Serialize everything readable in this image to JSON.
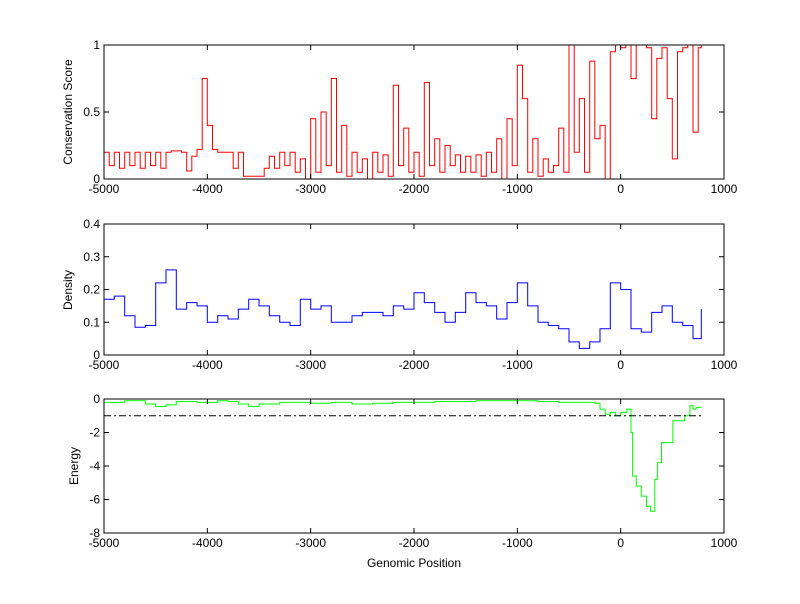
{
  "chart_data": [
    {
      "type": "line",
      "ylabel": "Conservation Score",
      "xlabel": "",
      "xlim": [
        -5000,
        1000
      ],
      "ylim": [
        0,
        1
      ],
      "xticks": [
        -5000,
        -4000,
        -3000,
        -2000,
        -1000,
        0,
        1000
      ],
      "yticks": [
        0,
        0.5,
        1
      ],
      "grid": false,
      "color": "#ff0000",
      "series": [
        {
          "x": [
            -5000,
            -4950,
            -4900,
            -4850,
            -4800,
            -4750,
            -4700,
            -4650,
            -4600,
            -4550,
            -4500,
            -4450,
            -4400,
            -4350,
            -4300,
            -4250,
            -4200,
            -4150,
            -4100,
            -4050,
            -4000,
            -3950,
            -3900,
            -3850,
            -3800,
            -3750,
            -3700,
            -3650,
            -3600,
            -3550,
            -3500,
            -3450,
            -3400,
            -3350,
            -3300,
            -3250,
            -3200,
            -3150,
            -3100,
            -3050,
            -3000,
            -2950,
            -2900,
            -2850,
            -2800,
            -2750,
            -2700,
            -2650,
            -2600,
            -2550,
            -2500,
            -2450,
            -2400,
            -2350,
            -2300,
            -2250,
            -2200,
            -2150,
            -2100,
            -2050,
            -2000,
            -1950,
            -1900,
            -1850,
            -1800,
            -1750,
            -1700,
            -1650,
            -1600,
            -1550,
            -1500,
            -1450,
            -1400,
            -1350,
            -1300,
            -1250,
            -1200,
            -1150,
            -1100,
            -1050,
            -1000,
            -950,
            -900,
            -850,
            -800,
            -750,
            -700,
            -650,
            -600,
            -550,
            -500,
            -450,
            -400,
            -350,
            -300,
            -250,
            -200,
            -150,
            -100,
            -50,
            0,
            50,
            100,
            150,
            200,
            250,
            300,
            350,
            400,
            450,
            500,
            550,
            600,
            650,
            700,
            750,
            780
          ],
          "y": [
            0.2,
            0.1,
            0.2,
            0.08,
            0.2,
            0.1,
            0.2,
            0.08,
            0.2,
            0.1,
            0.2,
            0.08,
            0.2,
            0.21,
            0.21,
            0.2,
            0.06,
            0.17,
            0.22,
            0.75,
            0.4,
            0.22,
            0.2,
            0.2,
            0.2,
            0.08,
            0.2,
            0.02,
            0.02,
            0.02,
            0.02,
            0.08,
            0.17,
            0.08,
            0.2,
            0.1,
            0.2,
            0.05,
            0.15,
            0.0,
            0.45,
            0.05,
            0.5,
            0.1,
            0.75,
            0.05,
            0.4,
            0.02,
            0.2,
            0.05,
            0.15,
            0.0,
            0.2,
            0.05,
            0.18,
            0.02,
            0.7,
            0.1,
            0.38,
            0.05,
            0.2,
            0.02,
            0.72,
            0.1,
            0.3,
            0.05,
            0.25,
            0.1,
            0.18,
            0.05,
            0.17,
            0.05,
            0.18,
            0.02,
            0.2,
            0.05,
            0.3,
            0.0,
            0.45,
            0.1,
            0.85,
            0.6,
            0.05,
            0.3,
            0.02,
            0.15,
            0.05,
            0.1,
            0.38,
            0.05,
            1.0,
            0.2,
            0.6,
            0.05,
            0.88,
            0.3,
            0.4,
            0.0,
            0.95,
            1.0,
            0.98,
            1.0,
            0.75,
            1.0,
            1.0,
            0.98,
            0.45,
            0.9,
            0.98,
            0.6,
            0.15,
            0.95,
            0.98,
            1.0,
            0.35,
            0.98,
            1.0
          ]
        }
      ]
    },
    {
      "type": "line",
      "ylabel": "Density",
      "xlabel": "",
      "xlim": [
        -5000,
        1000
      ],
      "ylim": [
        0,
        0.4
      ],
      "xticks": [
        -5000,
        -4000,
        -3000,
        -2000,
        -1000,
        0,
        1000
      ],
      "yticks": [
        0,
        0.1,
        0.2,
        0.3,
        0.4
      ],
      "grid": false,
      "color": "#0000ff",
      "series": [
        {
          "x": [
            -5000,
            -4900,
            -4800,
            -4700,
            -4600,
            -4500,
            -4400,
            -4300,
            -4200,
            -4100,
            -4000,
            -3900,
            -3800,
            -3700,
            -3600,
            -3500,
            -3400,
            -3300,
            -3200,
            -3100,
            -3000,
            -2900,
            -2800,
            -2700,
            -2600,
            -2500,
            -2400,
            -2300,
            -2200,
            -2100,
            -2000,
            -1900,
            -1800,
            -1700,
            -1600,
            -1500,
            -1400,
            -1300,
            -1200,
            -1100,
            -1000,
            -900,
            -800,
            -700,
            -600,
            -500,
            -400,
            -300,
            -200,
            -100,
            0,
            100,
            200,
            300,
            400,
            500,
            600,
            700,
            780
          ],
          "y": [
            0.17,
            0.18,
            0.12,
            0.085,
            0.09,
            0.22,
            0.26,
            0.14,
            0.16,
            0.15,
            0.1,
            0.12,
            0.11,
            0.14,
            0.17,
            0.15,
            0.12,
            0.1,
            0.09,
            0.17,
            0.14,
            0.15,
            0.1,
            0.1,
            0.12,
            0.13,
            0.13,
            0.12,
            0.15,
            0.14,
            0.19,
            0.16,
            0.13,
            0.1,
            0.13,
            0.19,
            0.16,
            0.15,
            0.11,
            0.16,
            0.22,
            0.15,
            0.1,
            0.09,
            0.08,
            0.04,
            0.02,
            0.04,
            0.08,
            0.22,
            0.2,
            0.08,
            0.07,
            0.13,
            0.15,
            0.1,
            0.09,
            0.05,
            0.14
          ]
        }
      ]
    },
    {
      "type": "line",
      "ylabel": "Energy",
      "xlabel": "Genomic Position",
      "xlim": [
        -5000,
        1000
      ],
      "ylim": [
        -8,
        0
      ],
      "xticks": [
        -5000,
        -4000,
        -3000,
        -2000,
        -1000,
        0,
        1000
      ],
      "yticks": [
        -8,
        -6,
        -4,
        -2,
        0
      ],
      "grid": false,
      "color": "#00ff00",
      "threshold": {
        "y": -1,
        "style": "dash-dot",
        "color": "#000000",
        "xrange": [
          -5000,
          800
        ]
      },
      "series": [
        {
          "x": [
            -5000,
            -4800,
            -4600,
            -4500,
            -4400,
            -4300,
            -4100,
            -3900,
            -3800,
            -3700,
            -3600,
            -3500,
            -3300,
            -3000,
            -2800,
            -2600,
            -2400,
            -2200,
            -2000,
            -1800,
            -1600,
            -1400,
            -1200,
            -1000,
            -800,
            -600,
            -400,
            -250,
            -200,
            -150,
            -100,
            -50,
            0,
            60,
            100,
            115,
            150,
            200,
            250,
            290,
            330,
            355,
            395,
            460,
            505,
            560,
            620,
            670,
            700,
            730,
            780
          ],
          "y": [
            -0.2,
            -0.1,
            -0.3,
            -0.45,
            -0.35,
            -0.15,
            -0.2,
            -0.1,
            -0.15,
            -0.3,
            -0.45,
            -0.3,
            -0.2,
            -0.25,
            -0.2,
            -0.3,
            -0.25,
            -0.2,
            -0.2,
            -0.15,
            -0.15,
            -0.1,
            -0.1,
            -0.1,
            -0.15,
            -0.2,
            -0.2,
            -0.25,
            -0.6,
            -0.9,
            -0.8,
            -1.0,
            -0.8,
            -0.6,
            -2.0,
            -4.6,
            -5.2,
            -5.8,
            -6.4,
            -6.7,
            -4.8,
            -3.8,
            -2.6,
            -2.6,
            -1.3,
            -1.3,
            -1.0,
            -0.4,
            -0.6,
            -0.5,
            -0.5
          ]
        }
      ]
    }
  ]
}
